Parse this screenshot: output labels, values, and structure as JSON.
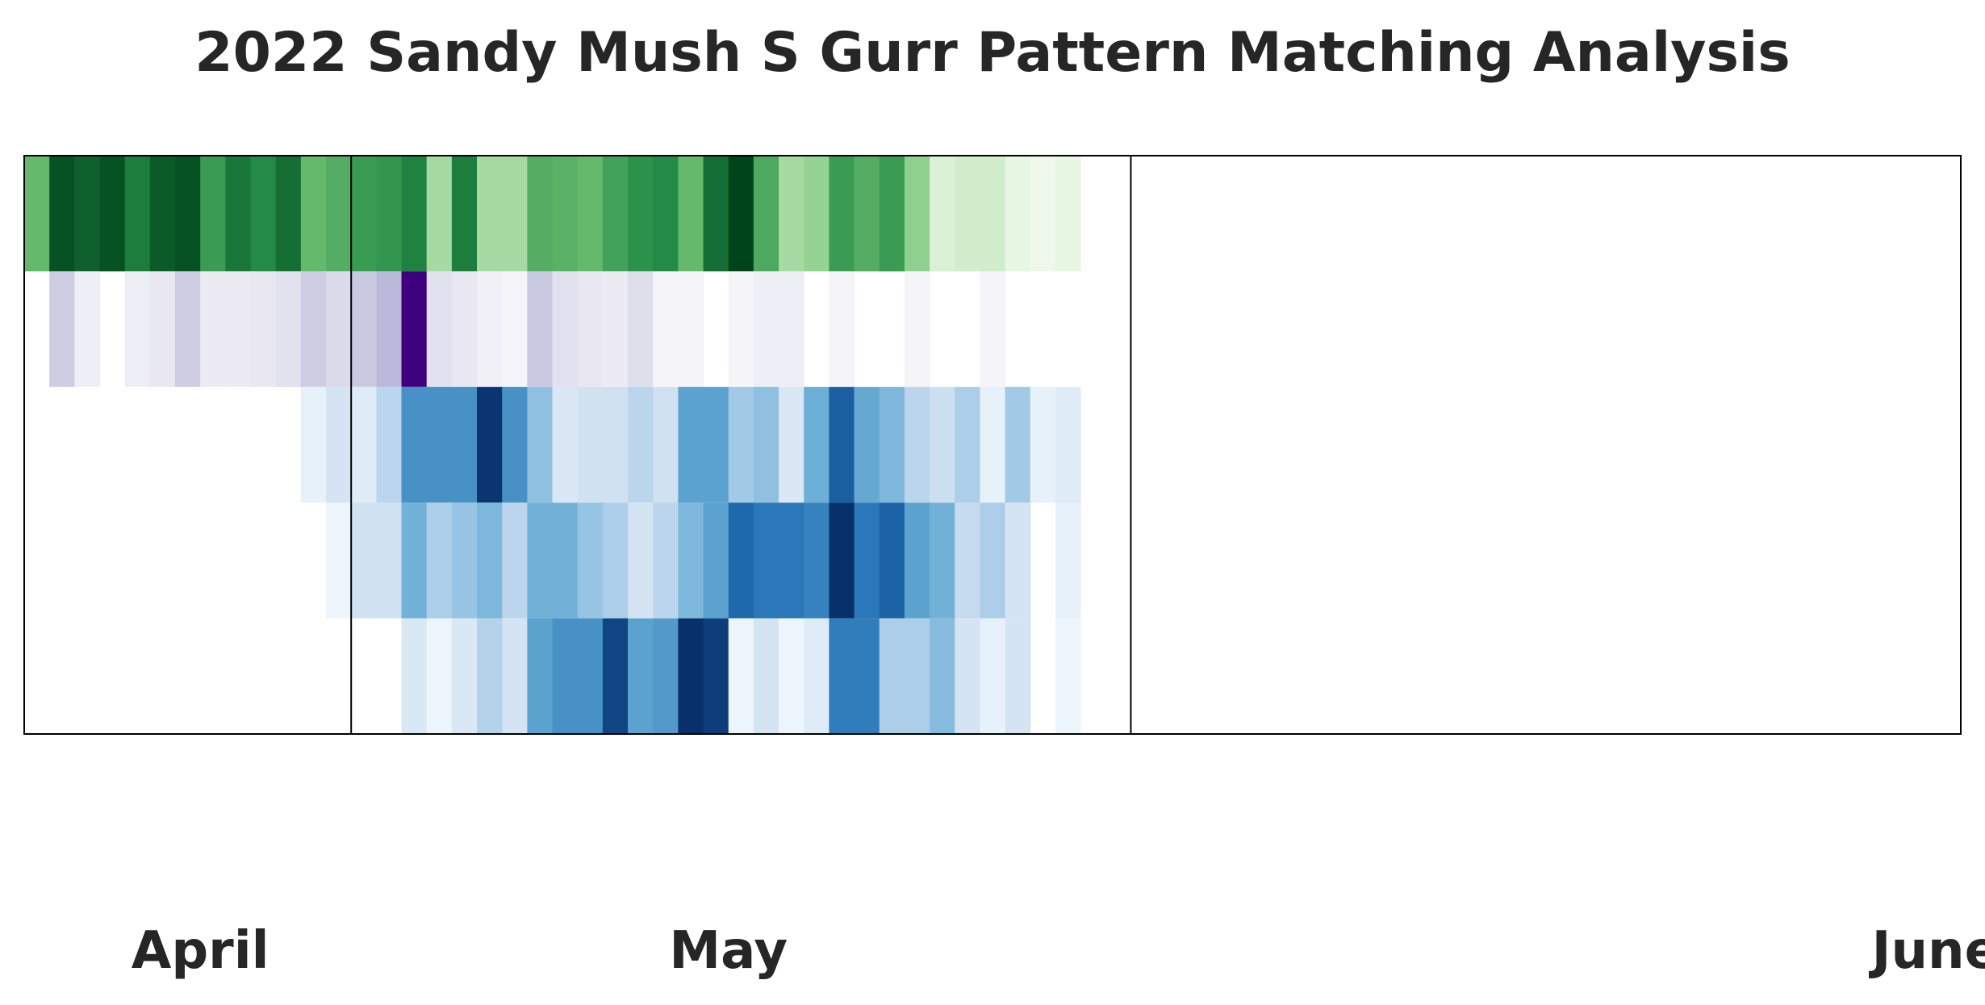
{
  "chart_data": {
    "type": "heatmap",
    "title": "2022 Sandy Mush S Gurr Pattern Matching Analysis",
    "x_start": "2022-03-31",
    "x_end": "2022-06-16",
    "month_boundaries": [
      "2022-04-13",
      "2022-05-14"
    ],
    "month_labels": [
      {
        "label": "April",
        "date": "2022-04-07"
      },
      {
        "label": "May",
        "date": "2022-04-28"
      },
      {
        "label": "June",
        "date": "2022-06-15"
      }
    ],
    "rows": [
      {
        "colormap": "green",
        "start": "2022-03-31",
        "values": [
          0.55,
          0.95,
          0.9,
          0.95,
          0.8,
          0.92,
          0.95,
          0.68,
          0.82,
          0.75,
          0.85,
          0.55,
          0.6,
          0.68,
          0.7,
          0.78,
          0.35,
          0.8,
          0.35,
          0.35,
          0.6,
          0.58,
          0.55,
          0.65,
          0.72,
          0.75,
          0.55,
          0.85,
          1.0,
          0.62,
          0.35,
          0.4,
          0.68,
          0.6,
          0.68,
          0.42,
          0.15,
          0.2,
          0.2,
          0.08,
          0.05,
          0.08
        ]
      },
      {
        "colormap": "purple",
        "start": "2022-03-31",
        "values": [
          0.0,
          0.3,
          0.1,
          0.0,
          0.1,
          0.15,
          0.3,
          0.12,
          0.12,
          0.15,
          0.2,
          0.3,
          0.25,
          0.32,
          0.38,
          1.0,
          0.2,
          0.15,
          0.08,
          0.05,
          0.32,
          0.2,
          0.15,
          0.12,
          0.22,
          0.05,
          0.05,
          0.0,
          0.05,
          0.1,
          0.1,
          0.0,
          0.05,
          0.0,
          0.0,
          0.05,
          0.0,
          0.0,
          0.05,
          0.0
        ]
      },
      {
        "colormap": "blue",
        "start": "2022-04-11",
        "values": [
          0.08,
          0.18,
          0.12,
          0.28,
          0.62,
          0.62,
          0.62,
          0.98,
          0.62,
          0.4,
          0.15,
          0.2,
          0.2,
          0.28,
          0.2,
          0.55,
          0.55,
          0.35,
          0.4,
          0.15,
          0.5,
          0.82,
          0.52,
          0.45,
          0.28,
          0.22,
          0.32,
          0.08,
          0.35,
          0.08,
          0.12
        ]
      },
      {
        "colormap": "blue",
        "start": "2022-04-12",
        "values": [
          0.05,
          0.2,
          0.2,
          0.48,
          0.32,
          0.38,
          0.45,
          0.28,
          0.48,
          0.48,
          0.38,
          0.32,
          0.18,
          0.28,
          0.45,
          0.55,
          0.78,
          0.72,
          0.72,
          0.68,
          1.0,
          0.72,
          0.8,
          0.55,
          0.48,
          0.25,
          0.32,
          0.18,
          0.0,
          0.08
        ]
      },
      {
        "colormap": "blue",
        "start": "2022-04-15",
        "values": [
          0.15,
          0.05,
          0.15,
          0.3,
          0.18,
          0.55,
          0.62,
          0.62,
          0.92,
          0.55,
          0.58,
          1.0,
          0.95,
          0.05,
          0.18,
          0.05,
          0.12,
          0.7,
          0.7,
          0.32,
          0.32,
          0.42,
          0.18,
          0.08,
          0.18,
          0.0,
          0.05
        ]
      }
    ]
  }
}
